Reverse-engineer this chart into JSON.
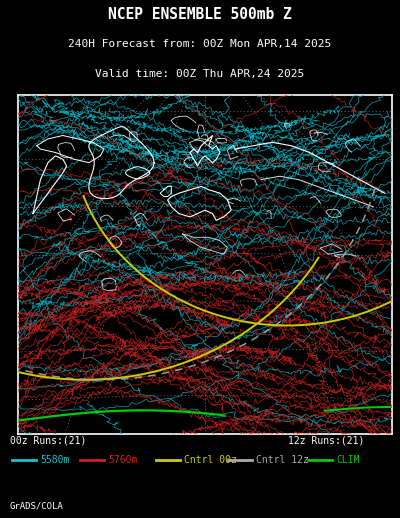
{
  "title_line1": "NCEP ENSEMBLE 500mb Z",
  "title_line2": "240H Forecast from: 00Z Mon APR,14 2025",
  "title_line3": "Valid time: 00Z Thu APR,24 2025",
  "bg_color": "#000000",
  "map_bg_color": "#000000",
  "border_color": "#ffffff",
  "label_00z": "00z Runs:(21)",
  "label_12z": "12z Runs:(21)",
  "legend_items": [
    {
      "label": "5580m",
      "color": "#00cccc",
      "text_color": "#00cccc"
    },
    {
      "label": "5760m",
      "color": "#cc2020",
      "text_color": "#cc2020"
    },
    {
      "label": "Cntrl 00z",
      "color": "#cccc00",
      "text_color": "#cccc00"
    },
    {
      "label": "Cntrl 12z",
      "color": "#aaaaaa",
      "text_color": "#aaaaaa"
    },
    {
      "label": "CLIM",
      "color": "#00cc00",
      "text_color": "#00cc00"
    }
  ],
  "watermark": "GrADS/COLA",
  "title_color": "#ffffff",
  "font_family": "monospace",
  "title_fontsize": 10.5,
  "subtitle_fontsize": 8.0,
  "seed": 42,
  "n_cyan_lines": 60,
  "n_red_lines": 60,
  "cyan_color": "#00bbcc",
  "red_color": "#cc2020",
  "yellow_color": "#cccc00",
  "gray_color": "#aaaaaa",
  "green_color": "#00cc00"
}
